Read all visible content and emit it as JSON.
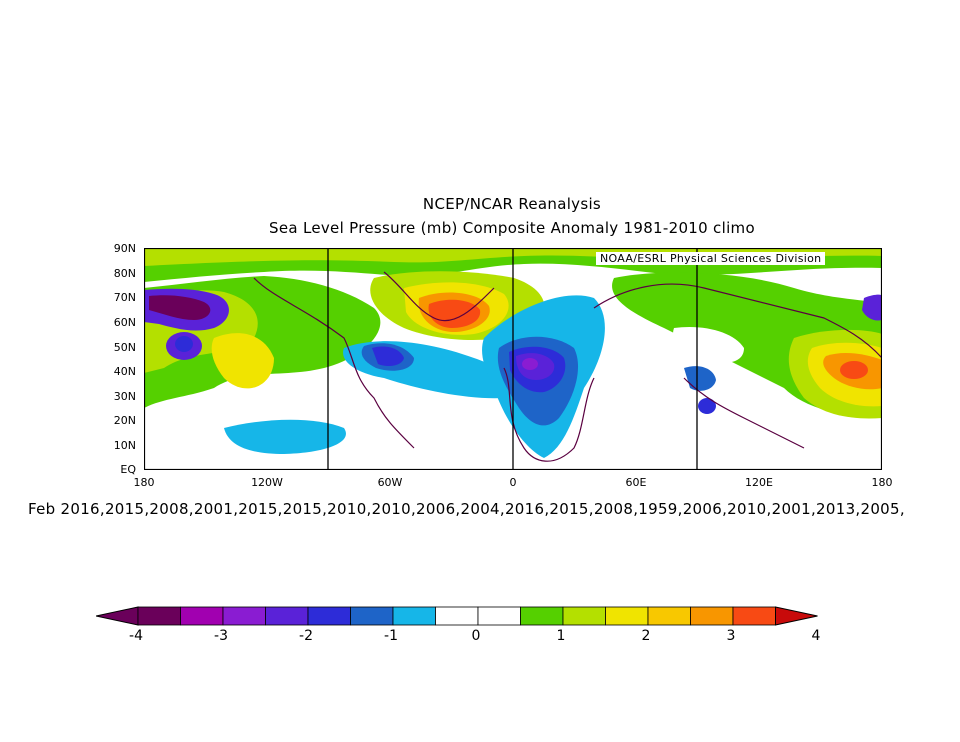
{
  "header": {
    "title": "NCEP/NCAR Reanalysis",
    "subtitle": "Sea Level Pressure (mb) Composite Anomaly 1981-2010 climo"
  },
  "map": {
    "credit": "NOAA/ESRL Physical Sciences Division",
    "lat_ticks": [
      "90N",
      "80N",
      "70N",
      "60N",
      "50N",
      "40N",
      "30N",
      "20N",
      "10N",
      "EQ"
    ],
    "lon_ticks": [
      "180",
      "120W",
      "60W",
      "0",
      "60E",
      "120E",
      "180"
    ]
  },
  "footer": {
    "years": "Feb 2016,2015,2008,2001,2015,2015,2010,2010,2006,2004,2016,2015,2008,1959,2006,2010,2001,2013,2005,"
  },
  "colorbar": {
    "colors": [
      "#6a005a",
      "#a100b0",
      "#8a1cd2",
      "#5a22d8",
      "#2d2cd8",
      "#1e64c8",
      "#16b6e8",
      "#ffffff",
      "#ffffff",
      "#55d000",
      "#b4e000",
      "#f0e400",
      "#f8c800",
      "#f89600",
      "#f84a14"
    ],
    "labels": [
      "-4",
      "-3",
      "-2",
      "-1",
      "0",
      "1",
      "2",
      "3",
      "4"
    ]
  }
}
